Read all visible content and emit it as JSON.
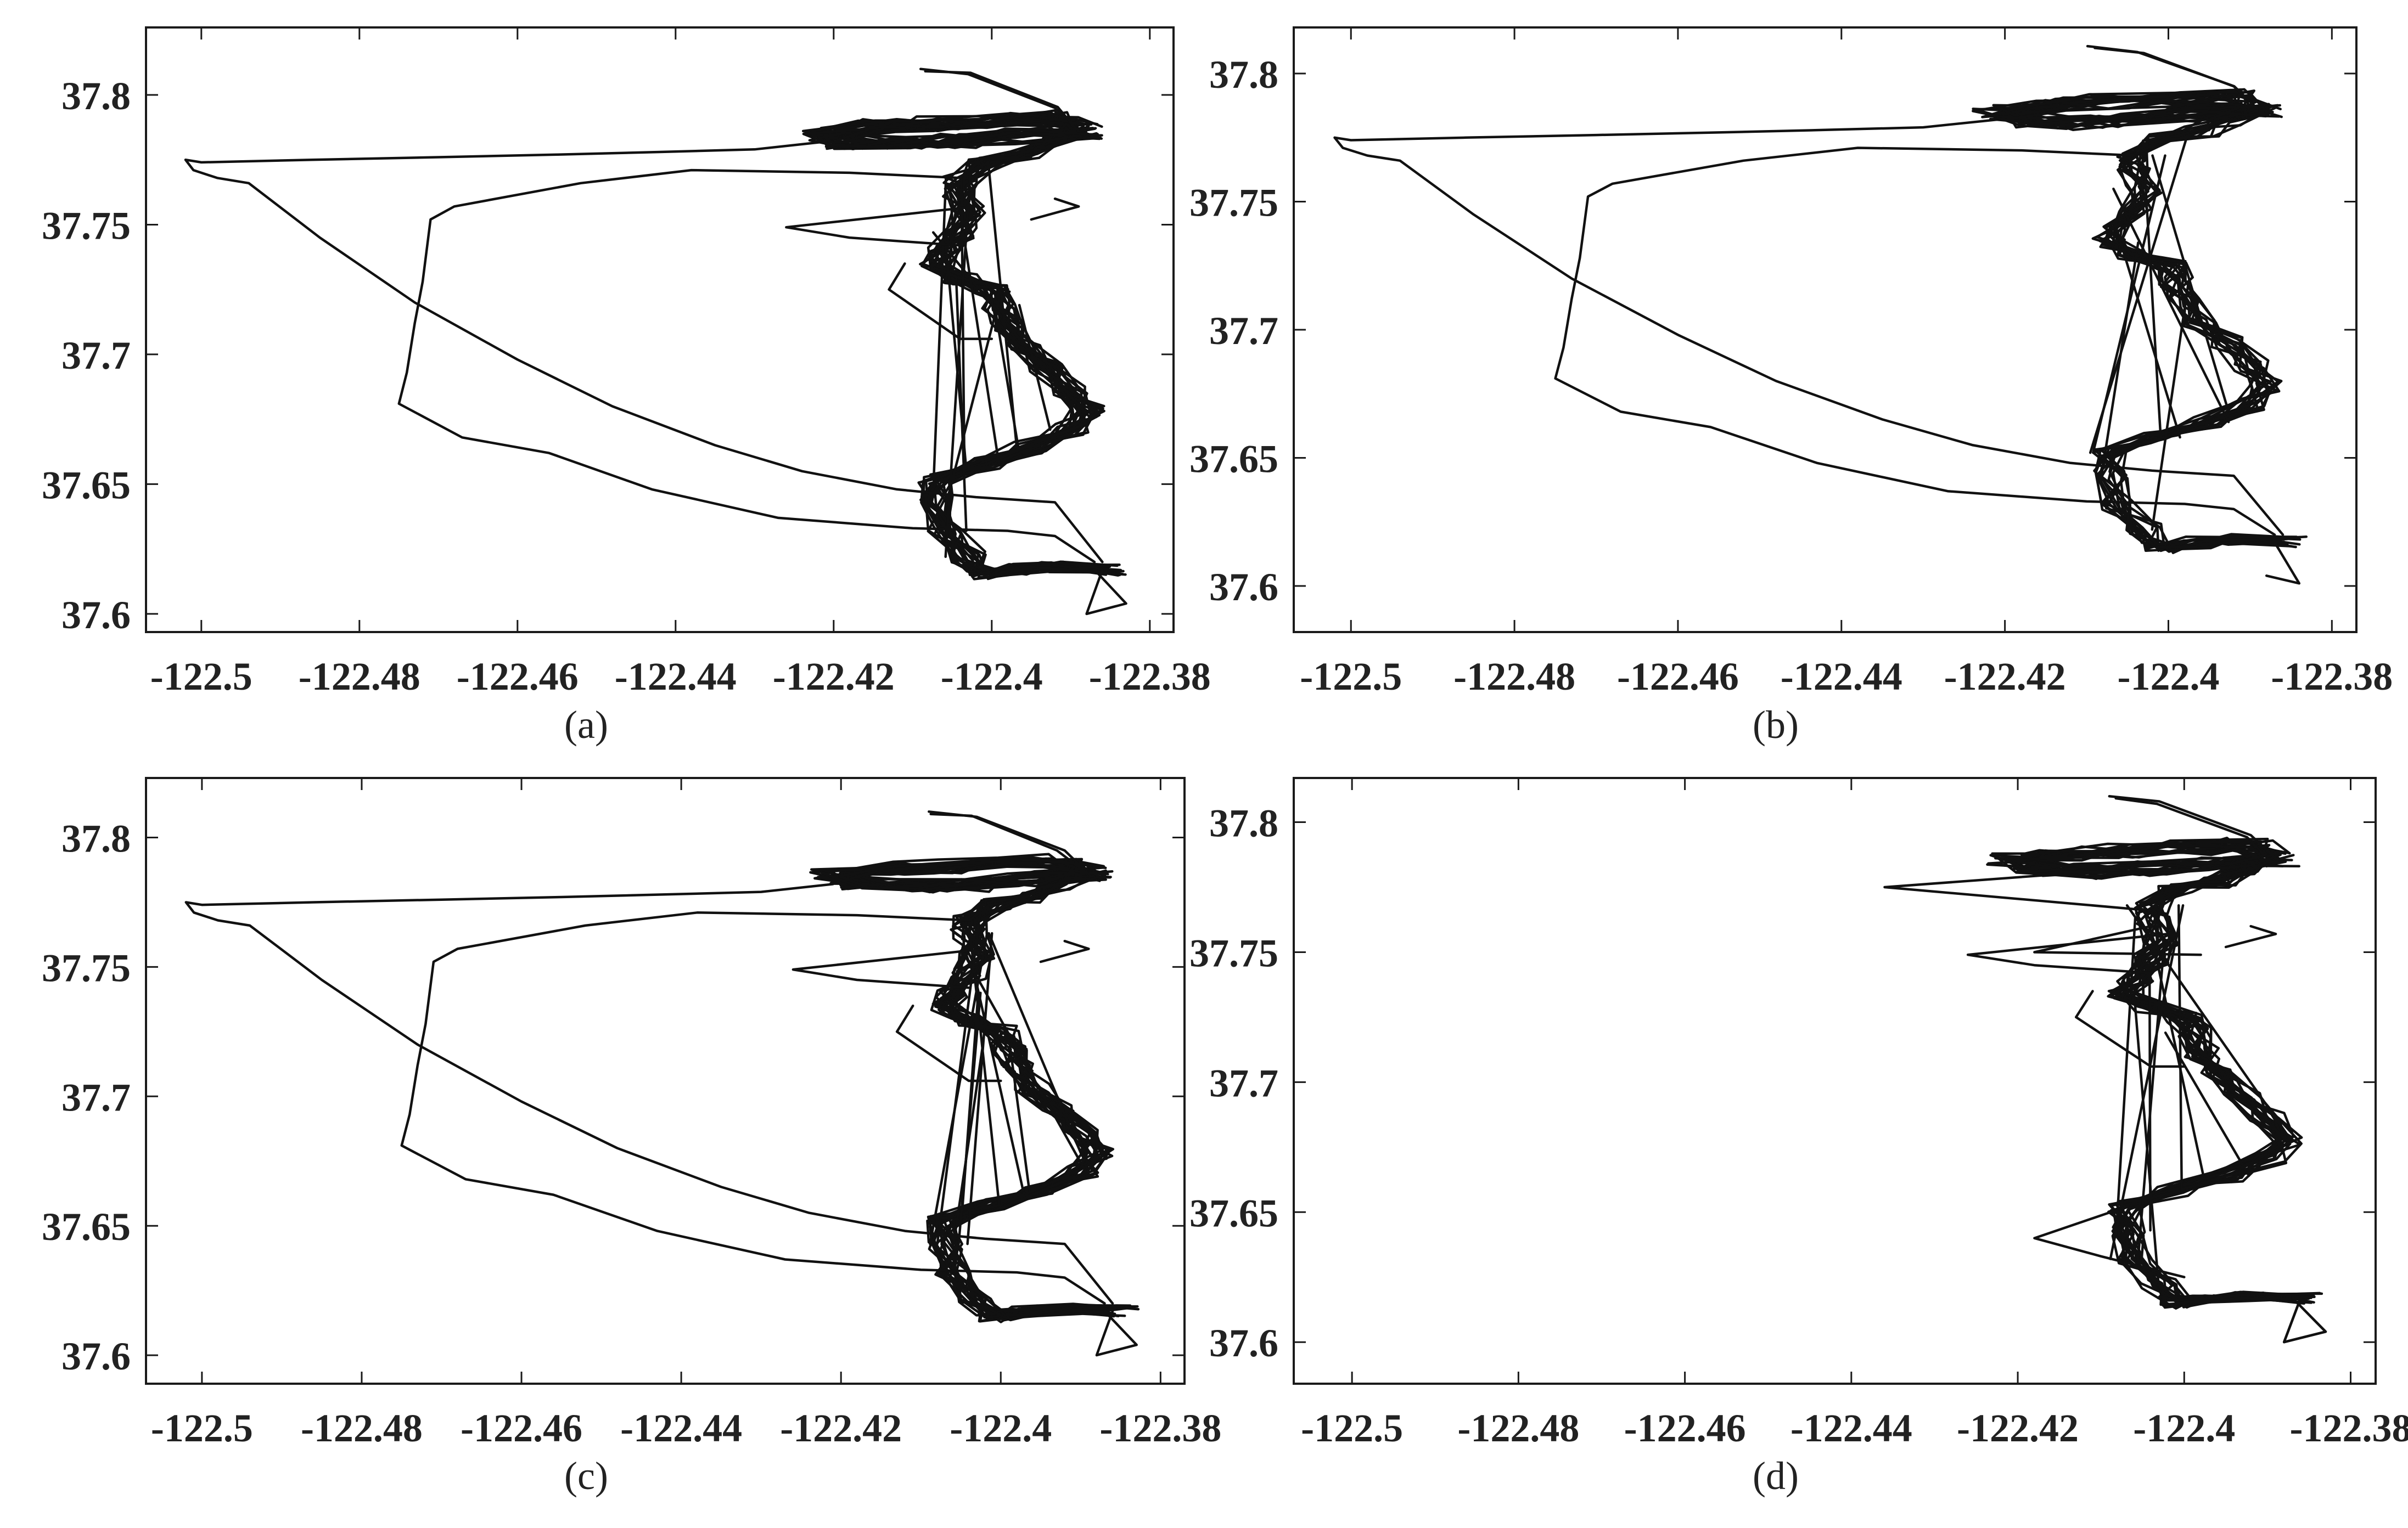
{
  "chart_data": [
    {
      "type": "line",
      "panel_label": "a",
      "caption": "(a)",
      "xlim": [
        -122.507,
        -122.377
      ],
      "ylim": [
        37.593,
        37.826
      ],
      "xticks": [
        -122.5,
        -122.48,
        -122.46,
        -122.44,
        -122.42,
        -122.4,
        -122.38
      ],
      "yticks": [
        37.6,
        37.65,
        37.7,
        37.75,
        37.8
      ],
      "xtick_labels": [
        "-122.5",
        "-122.48",
        "-122.46",
        "-122.44",
        "-122.42",
        "-122.4",
        "-122.38"
      ],
      "ytick_labels": [
        "37.6",
        "37.65",
        "37.7",
        "37.75",
        "37.8"
      ],
      "include_west_loop": true,
      "include_spikes": true,
      "include_secondary_branch": false,
      "trajectory_count": 22,
      "seed": 11
    },
    {
      "type": "line",
      "panel_label": "b",
      "caption": "(b)",
      "xlim": [
        -122.507,
        -122.377
      ],
      "ylim": [
        37.582,
        37.818
      ],
      "xticks": [
        -122.5,
        -122.48,
        -122.46,
        -122.44,
        -122.42,
        -122.4,
        -122.38
      ],
      "yticks": [
        37.6,
        37.65,
        37.7,
        37.75,
        37.8
      ],
      "xtick_labels": [
        "-122.5",
        "-122.48",
        "-122.46",
        "-122.44",
        "-122.42",
        "-122.4",
        "-122.38"
      ],
      "ytick_labels": [
        "37.6",
        "37.65",
        "37.7",
        "37.75",
        "37.8"
      ],
      "include_west_loop": true,
      "include_spikes": false,
      "include_secondary_branch": false,
      "trajectory_count": 16,
      "seed": 23
    },
    {
      "type": "line",
      "panel_label": "c",
      "caption": "(c)",
      "xlim": [
        -122.507,
        -122.377
      ],
      "ylim": [
        37.589,
        37.823
      ],
      "xticks": [
        -122.5,
        -122.48,
        -122.46,
        -122.44,
        -122.42,
        -122.4,
        -122.38
      ],
      "yticks": [
        37.6,
        37.65,
        37.7,
        37.75,
        37.8
      ],
      "xtick_labels": [
        "-122.5",
        "-122.48",
        "-122.46",
        "-122.44",
        "-122.42",
        "-122.4",
        "-122.38"
      ],
      "ytick_labels": [
        "37.6",
        "37.65",
        "37.7",
        "37.75",
        "37.8"
      ],
      "include_west_loop": true,
      "include_spikes": true,
      "include_secondary_branch": false,
      "trajectory_count": 22,
      "seed": 37
    },
    {
      "type": "line",
      "panel_label": "d",
      "caption": "(d)",
      "xlim": [
        -122.507,
        -122.377
      ],
      "ylim": [
        37.584,
        37.817
      ],
      "xticks": [
        -122.5,
        -122.48,
        -122.46,
        -122.44,
        -122.42,
        -122.4,
        -122.38
      ],
      "yticks": [
        37.6,
        37.65,
        37.7,
        37.75,
        37.8
      ],
      "xtick_labels": [
        "-122.5",
        "-122.48",
        "-122.46",
        "-122.44",
        "-122.42",
        "-122.4",
        "-122.38"
      ],
      "ytick_labels": [
        "37.6",
        "37.65",
        "37.7",
        "37.75",
        "37.8"
      ],
      "include_west_loop": false,
      "include_spikes": true,
      "include_secondary_branch": true,
      "trajectory_count": 20,
      "seed": 53
    }
  ],
  "routes": {
    "main_corridor": [
      [
        -122.385,
        37.617
      ],
      [
        -122.392,
        37.618
      ],
      [
        -122.397,
        37.617
      ],
      [
        -122.401,
        37.615
      ],
      [
        -122.403,
        37.622
      ],
      [
        -122.406,
        37.632
      ],
      [
        -122.407,
        37.643
      ],
      [
        -122.407,
        37.652
      ],
      [
        -122.401,
        37.658
      ],
      [
        -122.395,
        37.664
      ],
      [
        -122.39,
        37.671
      ],
      [
        -122.388,
        37.678
      ],
      [
        -122.39,
        37.686
      ],
      [
        -122.393,
        37.695
      ],
      [
        -122.396,
        37.703
      ],
      [
        -122.398,
        37.711
      ],
      [
        -122.399,
        37.719
      ],
      [
        -122.4,
        37.725
      ],
      [
        -122.404,
        37.729
      ],
      [
        -122.407,
        37.734
      ],
      [
        -122.406,
        37.74
      ],
      [
        -122.404,
        37.747
      ],
      [
        -122.403,
        37.755
      ],
      [
        -122.404,
        37.763
      ],
      [
        -122.404,
        37.768
      ],
      [
        -122.401,
        37.774
      ],
      [
        -122.396,
        37.777
      ],
      [
        -122.393,
        37.782
      ],
      [
        -122.389,
        37.786
      ]
    ],
    "downtown_grid": [
      [
        -122.389,
        37.786
      ],
      [
        -122.397,
        37.784
      ],
      [
        -122.404,
        37.782
      ],
      [
        -122.411,
        37.781
      ],
      [
        -122.418,
        37.782
      ],
      [
        -122.421,
        37.785
      ],
      [
        -122.415,
        37.788
      ],
      [
        -122.407,
        37.789
      ],
      [
        -122.399,
        37.79
      ],
      [
        -122.392,
        37.791
      ],
      [
        -122.389,
        37.786
      ]
    ],
    "west_loop": [
      [
        -122.421,
        37.782
      ],
      [
        -122.43,
        37.779
      ],
      [
        -122.442,
        37.778
      ],
      [
        -122.455,
        37.777
      ],
      [
        -122.47,
        37.776
      ],
      [
        -122.486,
        37.775
      ],
      [
        -122.5,
        37.774
      ],
      [
        -122.502,
        37.775
      ],
      [
        -122.501,
        37.771
      ],
      [
        -122.498,
        37.768
      ],
      [
        -122.494,
        37.766
      ],
      [
        -122.485,
        37.745
      ],
      [
        -122.473,
        37.72
      ],
      [
        -122.46,
        37.698
      ],
      [
        -122.448,
        37.68
      ],
      [
        -122.435,
        37.665
      ],
      [
        -122.424,
        37.655
      ],
      [
        -122.412,
        37.648
      ],
      [
        -122.402,
        37.645
      ],
      [
        -122.392,
        37.643
      ],
      [
        -122.386,
        37.62
      ]
    ],
    "inner_loop": [
      [
        -122.404,
        37.768
      ],
      [
        -122.418,
        37.77
      ],
      [
        -122.438,
        37.771
      ],
      [
        -122.452,
        37.766
      ],
      [
        -122.468,
        37.757
      ],
      [
        -122.471,
        37.752
      ],
      [
        -122.472,
        37.728
      ],
      [
        -122.473,
        37.712
      ],
      [
        -122.474,
        37.693
      ],
      [
        -122.475,
        37.681
      ],
      [
        -122.467,
        37.668
      ],
      [
        -122.456,
        37.662
      ],
      [
        -122.443,
        37.648
      ],
      [
        -122.427,
        37.637
      ],
      [
        -122.41,
        37.633
      ],
      [
        -122.398,
        37.632
      ],
      [
        -122.392,
        37.63
      ],
      [
        -122.387,
        37.62
      ]
    ],
    "northeast_tail": [
      [
        -122.389,
        37.786
      ],
      [
        -122.392,
        37.795
      ],
      [
        -122.403,
        37.808
      ],
      [
        -122.409,
        37.81
      ]
    ],
    "south_spike": [
      [
        -122.387,
        37.617
      ],
      [
        -122.383,
        37.604
      ],
      [
        -122.388,
        37.6
      ],
      [
        -122.386,
        37.617
      ]
    ],
    "secondary_branch": [
      [
        -122.407,
        37.652
      ],
      [
        -122.418,
        37.64
      ],
      [
        -122.41,
        37.633
      ],
      [
        -122.4,
        37.625
      ]
    ]
  }
}
